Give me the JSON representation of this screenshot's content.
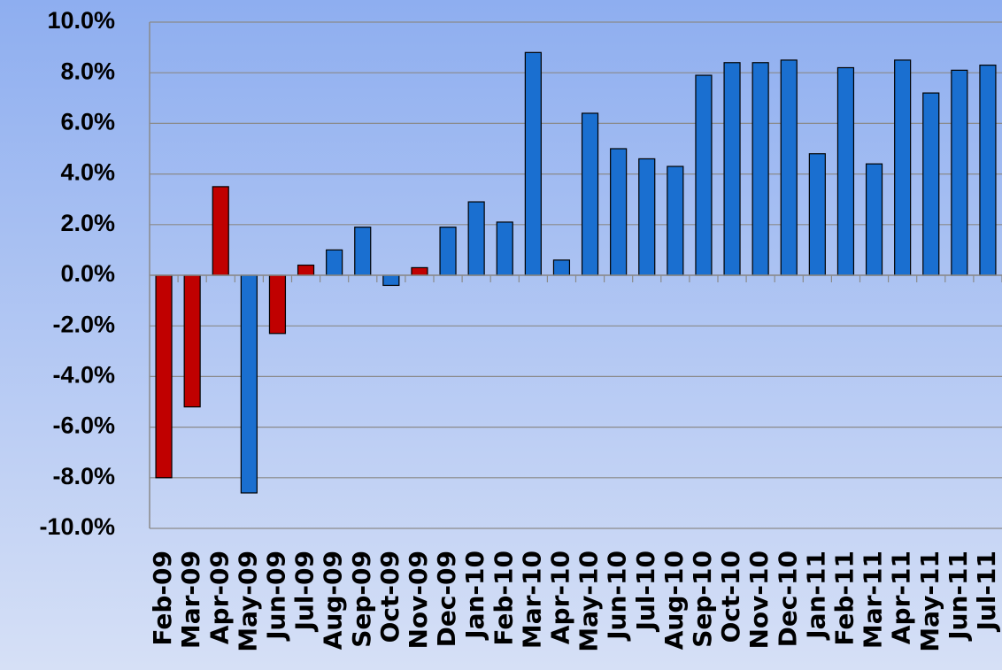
{
  "chart_data": {
    "type": "bar",
    "categories": [
      "Feb-09",
      "Mar-09",
      "Apr-09",
      "May-09",
      "Jun-09",
      "Jul-09",
      "Aug-09",
      "Sep-09",
      "Oct-09",
      "Nov-09",
      "Dec-09",
      "Jan-10",
      "Feb-10",
      "Mar-10",
      "Apr-10",
      "May-10",
      "Jun-10",
      "Jul-10",
      "Aug-10",
      "Sep-10",
      "Oct-10",
      "Nov-10",
      "Dec-10",
      "Jan-11",
      "Feb-11",
      "Mar-11",
      "Apr-11",
      "May-11",
      "Jun-11",
      "Jul-11"
    ],
    "values": [
      -8.0,
      -5.2,
      3.5,
      -8.6,
      -2.3,
      0.4,
      1.0,
      1.9,
      -0.4,
      0.3,
      1.9,
      2.9,
      2.1,
      8.8,
      0.6,
      6.4,
      5.0,
      4.6,
      4.3,
      7.9,
      8.4,
      8.4,
      8.5,
      4.8,
      8.2,
      4.4,
      8.5,
      7.2,
      8.1,
      8.3
    ],
    "colors": [
      "#c00000",
      "#c00000",
      "#c00000",
      "#1a6fd0",
      "#c00000",
      "#c00000",
      "#1a6fd0",
      "#1a6fd0",
      "#1a6fd0",
      "#c00000",
      "#1a6fd0",
      "#1a6fd0",
      "#1a6fd0",
      "#1a6fd0",
      "#1a6fd0",
      "#1a6fd0",
      "#1a6fd0",
      "#1a6fd0",
      "#1a6fd0",
      "#1a6fd0",
      "#1a6fd0",
      "#1a6fd0",
      "#1a6fd0",
      "#1a6fd0",
      "#1a6fd0",
      "#1a6fd0",
      "#1a6fd0",
      "#1a6fd0",
      "#1a6fd0",
      "#1a6fd0"
    ],
    "ylim": [
      -10,
      10
    ],
    "yticks": [
      {
        "value": -10,
        "label": "-10.0%"
      },
      {
        "value": -8,
        "label": "-8.0%"
      },
      {
        "value": -6,
        "label": "-6.0%"
      },
      {
        "value": -4,
        "label": "-4.0%"
      },
      {
        "value": -2,
        "label": "-2.0%"
      },
      {
        "value": 0,
        "label": "0.0%"
      },
      {
        "value": 2,
        "label": "2.0%"
      },
      {
        "value": 4,
        "label": "4.0%"
      },
      {
        "value": 6,
        "label": "6.0%"
      },
      {
        "value": 8,
        "label": "8.0%"
      },
      {
        "value": 10,
        "label": "10.0%"
      }
    ],
    "grid": true
  }
}
